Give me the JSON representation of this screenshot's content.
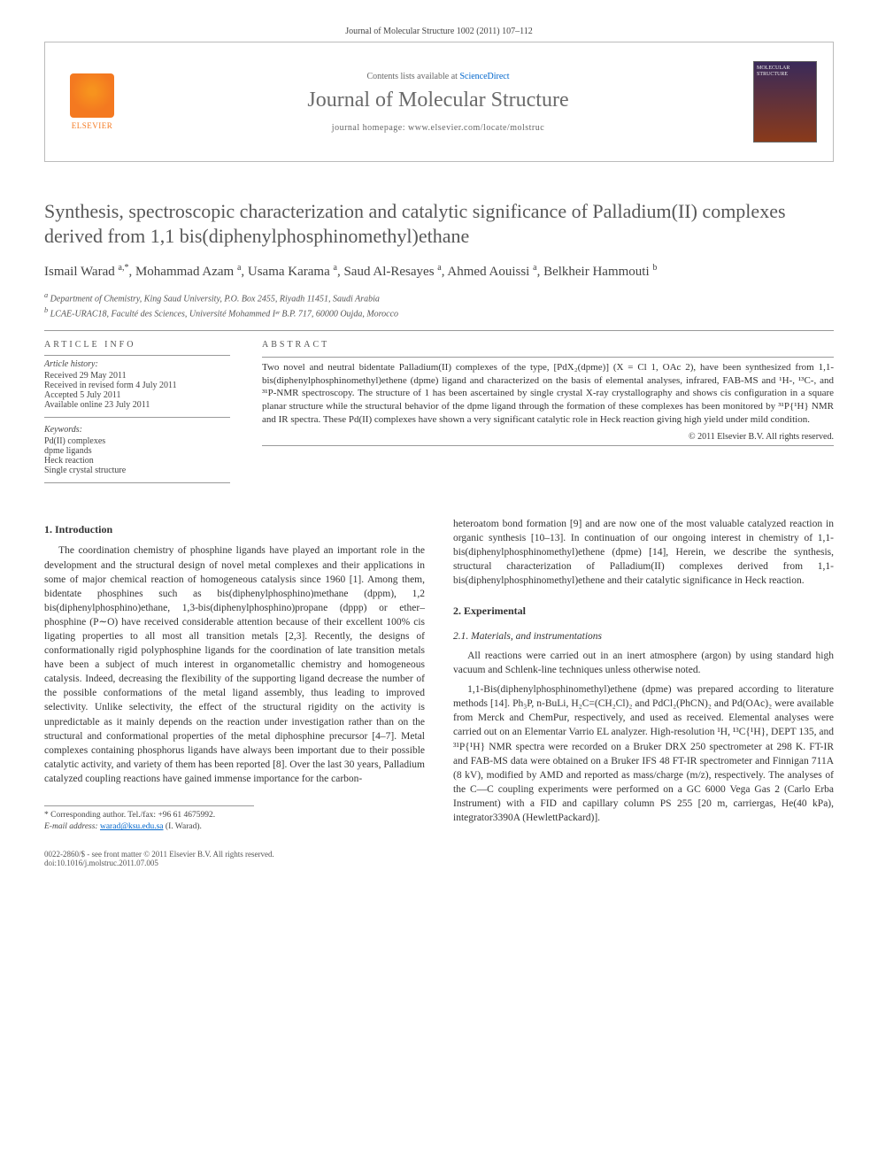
{
  "journal_ref": "Journal of Molecular Structure 1002 (2011) 107–112",
  "banner": {
    "contents_prefix": "Contents lists available at ",
    "contents_link": "ScienceDirect",
    "journal": "Journal of Molecular Structure",
    "homepage_prefix": "journal homepage: ",
    "homepage": "www.elsevier.com/locate/molstruc",
    "publisher": "ELSEVIER",
    "cover_text": "MOLECULAR STRUCTURE"
  },
  "title": "Synthesis, spectroscopic characterization and catalytic significance of Palladium(II) complexes derived from 1,1 bis(diphenylphosphinomethyl)ethane",
  "authors_html": "Ismail Warad <sup>a,*</sup>, Mohammad Azam <sup>a</sup>, Usama Karama <sup>a</sup>, Saud Al-Resayes <sup>a</sup>, Ahmed Aouissi <sup>a</sup>, Belkheir Hammouti <sup>b</sup>",
  "affiliations": {
    "a": "Department of Chemistry, King Saud University, P.O. Box 2455, Riyadh 11451, Saudi Arabia",
    "b": "LCAE-URAC18, Faculté des Sciences, Université Mohammed Iᵉʳ B.P. 717, 60000 Oujda, Morocco"
  },
  "article_info": {
    "head": "ARTICLE INFO",
    "history_head": "Article history:",
    "history": [
      "Received 29 May 2011",
      "Received in revised form 4 July 2011",
      "Accepted 5 July 2011",
      "Available online 23 July 2011"
    ],
    "keywords_head": "Keywords:",
    "keywords": [
      "Pd(II) complexes",
      "dpme ligands",
      "Heck reaction",
      "Single crystal structure"
    ]
  },
  "abstract": {
    "head": "ABSTRACT",
    "text": "Two novel and neutral bidentate Palladium(II) complexes of the type, [PdX₂(dpme)] (X = Cl 1, OAc 2), have been synthesized from 1,1-bis(diphenylphosphinomethyl)ethene (dpme) ligand and characterized on the basis of elemental analyses, infrared, FAB-MS and ¹H-, ¹³C-, and ³¹P-NMR spectroscopy. The structure of 1 has been ascertained by single crystal X-ray crystallography and shows cis configuration in a square planar structure while the structural behavior of the dpme ligand through the formation of these complexes has been monitored by ³¹P{¹H} NMR and IR spectra. These Pd(II) complexes have shown a very significant catalytic role in Heck reaction giving high yield under mild condition.",
    "copyright": "© 2011 Elsevier B.V. All rights reserved."
  },
  "sections": {
    "intro_head": "1. Introduction",
    "intro_p1": "The coordination chemistry of phosphine ligands have played an important role in the development and the structural design of novel metal complexes and their applications in some of major chemical reaction of homogeneous catalysis since 1960 [1]. Among them, bidentate phosphines such as bis(diphenylphosphino)methane (dppm), 1,2 bis(diphenylphosphino)ethane, 1,3-bis(diphenylphosphino)propane (dppp) or ether–phosphine (P∼O) have received considerable attention because of their excellent 100% cis ligating properties to all most all transition metals [2,3]. Recently, the designs of conformationally rigid polyphosphine ligands for the coordination of late transition metals have been a subject of much interest in organometallic chemistry and homogeneous catalysis. Indeed, decreasing the flexibility of the supporting ligand decrease the number of the possible conformations of the metal ligand assembly, thus leading to improved selectivity. Unlike selectivity, the effect of the structural rigidity on the activity is unpredictable as it mainly depends on the reaction under investigation rather than on the structural and conformational properties of the metal diphosphine precursor [4–7]. Metal complexes containing phosphorus ligands have always been important due to their possible catalytic activity, and variety of them has been reported [8]. Over the last 30 years, Palladium catalyzed coupling reactions have gained immense importance for the carbon-",
    "intro_p2": "heteroatom bond formation [9] and are now one of the most valuable catalyzed reaction in organic synthesis [10–13]. In continuation of our ongoing interest in chemistry of 1,1-bis(diphenylphosphinomethyl)ethene (dpme) [14], Herein, we describe the synthesis, structural characterization of Palladium(II) complexes derived from 1,1-bis(diphenylphosphinomethyl)ethene and their catalytic significance in Heck reaction.",
    "exp_head": "2. Experimental",
    "exp_sub": "2.1. Materials, and instrumentations",
    "exp_p1": "All reactions were carried out in an inert atmosphere (argon) by using standard high vacuum and Schlenk-line techniques unless otherwise noted.",
    "exp_p2": "1,1-Bis(diphenylphosphinomethyl)ethene (dpme) was prepared according to literature methods [14]. Ph₃P, n-BuLi, H₂C=(CH₂Cl)₂ and PdCl₂(PhCN)₂ and Pd(OAc)₂ were available from Merck and ChemPur, respectively, and used as received. Elemental analyses were carried out on an Elementar Varrio EL analyzer. High-resolution ¹H, ¹³C{¹H}, DEPT 135, and ³¹P{¹H} NMR spectra were recorded on a Bruker DRX 250 spectrometer at 298 K. FT-IR and FAB-MS data were obtained on a Bruker IFS 48 FT-IR spectrometer and Finnigan 711A (8 kV), modified by AMD and reported as mass/charge (m/z), respectively. The analyses of the C—C coupling experiments were performed on a GC 6000 Vega Gas 2 (Carlo Erba Instrument) with a FID and capillary column PS 255 [20 m, carriergas, He(40 kPa), integrator3390A (HewlettPackard)]."
  },
  "footnote": {
    "corr": "* Corresponding author. Tel./fax: +96 61 4675992.",
    "email_label": "E-mail address:",
    "email": "warad@ksu.edu.sa",
    "email_who": "(I. Warad)."
  },
  "footer": {
    "issn": "0022-2860/$ - see front matter © 2011 Elsevier B.V. All rights reserved.",
    "doi": "doi:10.1016/j.molstruc.2011.07.005"
  },
  "colors": {
    "accent": "#f47920",
    "link": "#0066cc",
    "heading": "#585858"
  }
}
